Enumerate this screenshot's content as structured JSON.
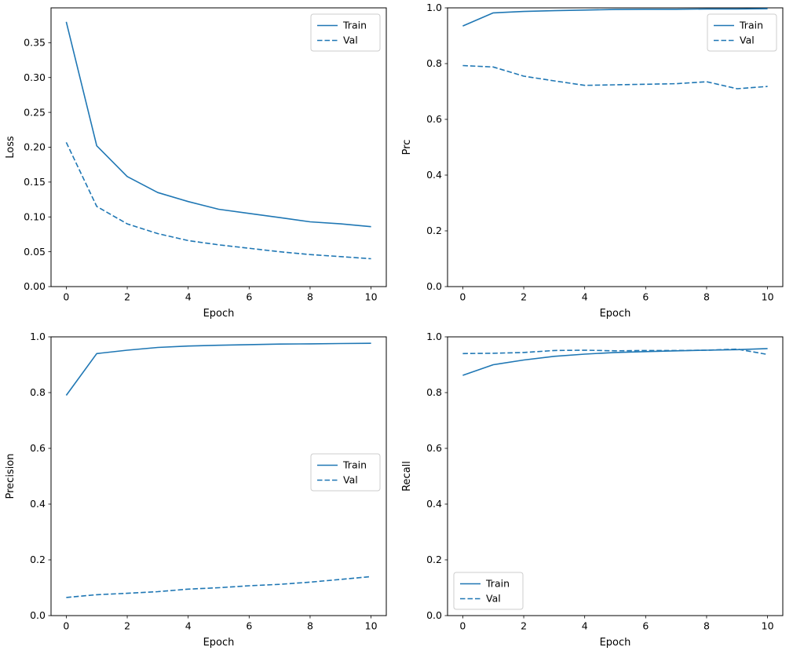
{
  "figure": {
    "background": "#ffffff",
    "accent_color": "#1f77b4",
    "layout": "2x2 grid of line plots, training curves over epochs"
  },
  "chart_data": [
    {
      "type": "line",
      "xlabel": "Epoch",
      "ylabel": "Loss",
      "x": [
        0,
        1,
        2,
        3,
        4,
        5,
        6,
        7,
        8,
        9,
        10
      ],
      "series": [
        {
          "name": "Train",
          "style": "solid",
          "color": "#1f77b4",
          "values": [
            0.38,
            0.202,
            0.158,
            0.135,
            0.122,
            0.111,
            0.105,
            0.099,
            0.093,
            0.09,
            0.086
          ]
        },
        {
          "name": "Val",
          "style": "dashed",
          "color": "#1f77b4",
          "values": [
            0.207,
            0.115,
            0.09,
            0.076,
            0.066,
            0.06,
            0.055,
            0.05,
            0.046,
            0.043,
            0.04
          ]
        }
      ],
      "xlim": [
        -0.5,
        10.5
      ],
      "ylim": [
        0.0,
        0.4
      ],
      "xticks": {
        "values": [
          0,
          2,
          4,
          6,
          8,
          10
        ],
        "labels": [
          "0",
          "2",
          "4",
          "6",
          "8",
          "10"
        ]
      },
      "yticks": {
        "values": [
          0.0,
          0.05,
          0.1,
          0.15,
          0.2,
          0.25,
          0.3,
          0.35
        ],
        "labels": [
          "0.00",
          "0.05",
          "0.10",
          "0.15",
          "0.20",
          "0.25",
          "0.30",
          "0.35"
        ]
      },
      "legend": {
        "position": "upper-right",
        "entries": [
          "Train",
          "Val"
        ]
      },
      "grid": false
    },
    {
      "type": "line",
      "xlabel": "Epoch",
      "ylabel": "Prc",
      "x": [
        0,
        1,
        2,
        3,
        4,
        5,
        6,
        7,
        8,
        9,
        10
      ],
      "series": [
        {
          "name": "Train",
          "style": "solid",
          "color": "#1f77b4",
          "values": [
            0.935,
            0.982,
            0.987,
            0.99,
            0.992,
            0.994,
            0.995,
            0.995,
            0.996,
            0.996,
            0.997
          ]
        },
        {
          "name": "Val",
          "style": "dashed",
          "color": "#1f77b4",
          "values": [
            0.793,
            0.788,
            0.755,
            0.738,
            0.722,
            0.724,
            0.726,
            0.728,
            0.735,
            0.71,
            0.718
          ]
        }
      ],
      "xlim": [
        -0.5,
        10.5
      ],
      "ylim": [
        0.0,
        1.0
      ],
      "xticks": {
        "values": [
          0,
          2,
          4,
          6,
          8,
          10
        ],
        "labels": [
          "0",
          "2",
          "4",
          "6",
          "8",
          "10"
        ]
      },
      "yticks": {
        "values": [
          0.0,
          0.2,
          0.4,
          0.6,
          0.8,
          1.0
        ],
        "labels": [
          "0.0",
          "0.2",
          "0.4",
          "0.6",
          "0.8",
          "1.0"
        ]
      },
      "legend": {
        "position": "upper-right",
        "entries": [
          "Train",
          "Val"
        ]
      },
      "grid": false
    },
    {
      "type": "line",
      "xlabel": "Epoch",
      "ylabel": "Precision",
      "x": [
        0,
        1,
        2,
        3,
        4,
        5,
        6,
        7,
        8,
        9,
        10
      ],
      "series": [
        {
          "name": "Train",
          "style": "solid",
          "color": "#1f77b4",
          "values": [
            0.79,
            0.94,
            0.952,
            0.962,
            0.967,
            0.97,
            0.972,
            0.974,
            0.975,
            0.976,
            0.977
          ]
        },
        {
          "name": "Val",
          "style": "dashed",
          "color": "#1f77b4",
          "values": [
            0.065,
            0.075,
            0.08,
            0.086,
            0.095,
            0.1,
            0.107,
            0.112,
            0.12,
            0.13,
            0.14
          ]
        }
      ],
      "xlim": [
        -0.5,
        10.5
      ],
      "ylim": [
        0.0,
        1.0
      ],
      "xticks": {
        "values": [
          0,
          2,
          4,
          6,
          8,
          10
        ],
        "labels": [
          "0",
          "2",
          "4",
          "6",
          "8",
          "10"
        ]
      },
      "yticks": {
        "values": [
          0.0,
          0.2,
          0.4,
          0.6,
          0.8,
          1.0
        ],
        "labels": [
          "0.0",
          "0.2",
          "0.4",
          "0.6",
          "0.8",
          "1.0"
        ]
      },
      "legend": {
        "position": "center-right",
        "entries": [
          "Train",
          "Val"
        ]
      },
      "grid": false
    },
    {
      "type": "line",
      "xlabel": "Epoch",
      "ylabel": "Recall",
      "x": [
        0,
        1,
        2,
        3,
        4,
        5,
        6,
        7,
        8,
        9,
        10
      ],
      "series": [
        {
          "name": "Train",
          "style": "solid",
          "color": "#1f77b4",
          "values": [
            0.862,
            0.9,
            0.917,
            0.93,
            0.938,
            0.944,
            0.947,
            0.95,
            0.952,
            0.954,
            0.958
          ]
        },
        {
          "name": "Val",
          "style": "dashed",
          "color": "#1f77b4",
          "values": [
            0.94,
            0.941,
            0.944,
            0.951,
            0.952,
            0.95,
            0.951,
            0.951,
            0.952,
            0.956,
            0.937
          ]
        }
      ],
      "xlim": [
        -0.5,
        10.5
      ],
      "ylim": [
        0.0,
        1.0
      ],
      "xticks": {
        "values": [
          0,
          2,
          4,
          6,
          8,
          10
        ],
        "labels": [
          "0",
          "2",
          "4",
          "6",
          "8",
          "10"
        ]
      },
      "yticks": {
        "values": [
          0.0,
          0.2,
          0.4,
          0.6,
          0.8,
          1.0
        ],
        "labels": [
          "0.0",
          "0.2",
          "0.4",
          "0.6",
          "0.8",
          "1.0"
        ]
      },
      "legend": {
        "position": "lower-left",
        "entries": [
          "Train",
          "Val"
        ]
      },
      "grid": false
    }
  ]
}
